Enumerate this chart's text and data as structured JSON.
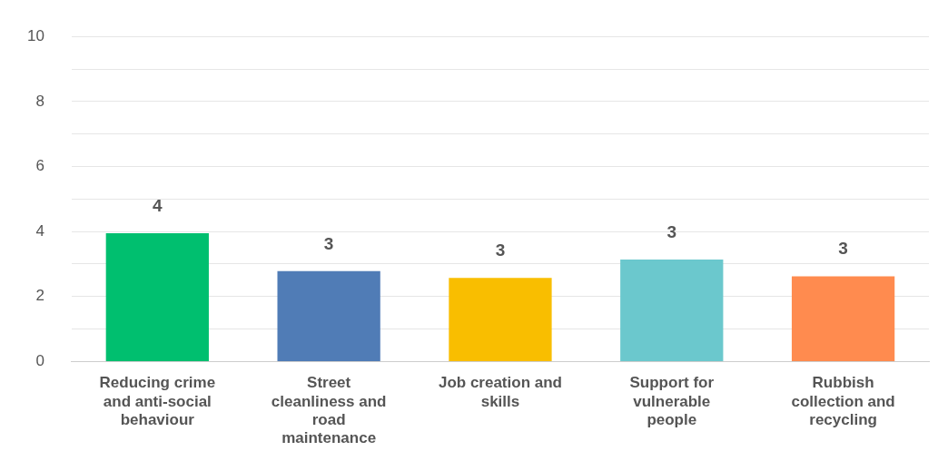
{
  "chart_data": {
    "type": "bar",
    "categories": [
      "Reducing crime and anti-social behaviour",
      "Street cleanliness and road maintenance",
      "Job creation and skills",
      "Support for vulnerable people",
      "Rubbish collection and recycling"
    ],
    "values": [
      3.95,
      2.78,
      2.57,
      3.14,
      2.62
    ],
    "colors": [
      "#00bf6f",
      "#507cb6",
      "#f9be00",
      "#6bc8cd",
      "#ff8b4f"
    ],
    "value_labels": [
      "4",
      "3",
      "3",
      "3",
      "3"
    ],
    "ylim": [
      0,
      10
    ],
    "yticks": [
      0,
      {
        "value": 1,
        "label": null
      },
      2,
      {
        "value": 3,
        "label": null
      },
      4,
      {
        "value": 5,
        "label": null
      },
      6,
      {
        "value": 7,
        "label": null
      },
      8,
      {
        "value": 9,
        "label": null
      },
      10
    ],
    "grid": "y",
    "legend": false
  }
}
